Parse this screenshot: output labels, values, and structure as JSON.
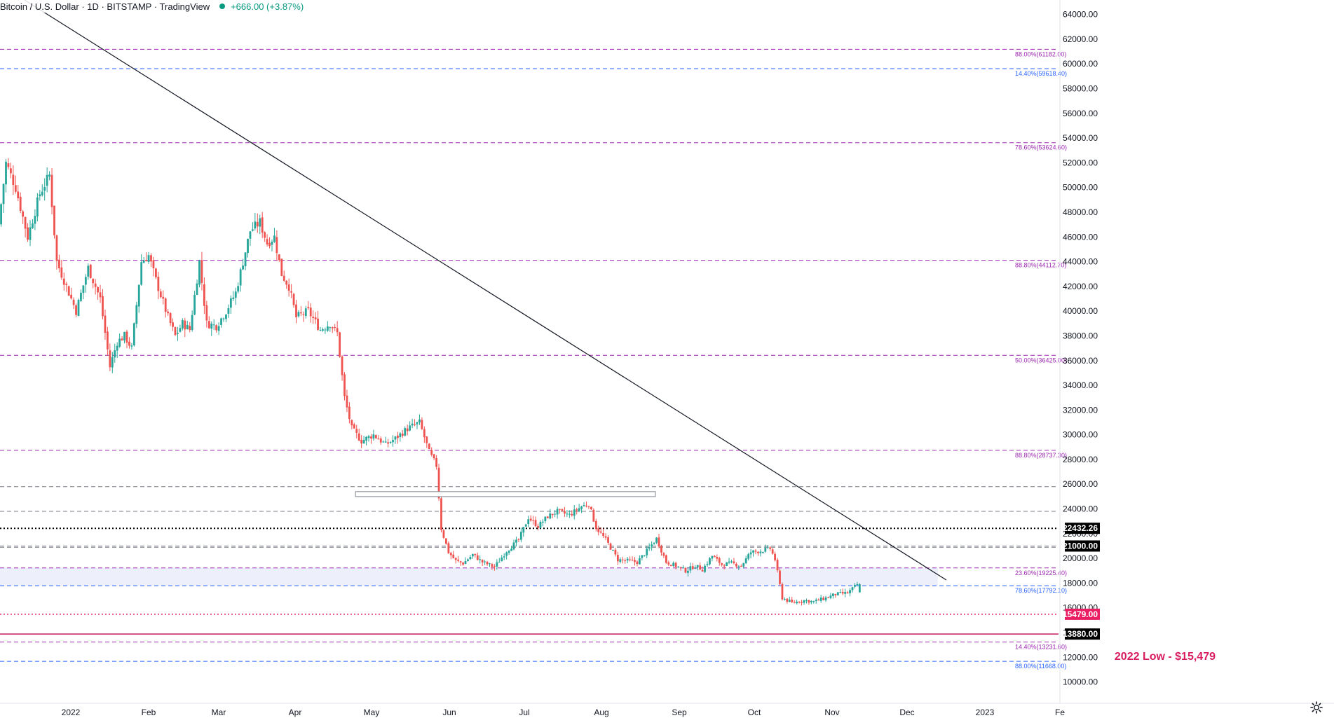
{
  "header": {
    "title": "Bitcoin / U.S. Dollar · 1D · BITSTAMP · TradingView",
    "change": "+666.00 (+3.87%)",
    "status_color": "#089981"
  },
  "colors": {
    "up": "#26a69a",
    "down": "#ef5350",
    "fib_purple": "#9c27b0",
    "fib_blue": "#2962ff",
    "grey_line": "#787b86",
    "crimson": "#c2185b"
  },
  "chart_data": {
    "type": "candlestick",
    "x_labels": [
      "2022",
      "Feb",
      "Mar",
      "Apr",
      "May",
      "Jun",
      "Jul",
      "Aug",
      "Sep",
      "Oct",
      "Nov",
      "Dec",
      "2023",
      "Fe"
    ],
    "y_ticks": [
      10000,
      12000,
      14000,
      16000,
      18000,
      20000,
      22000,
      24000,
      26000,
      28000,
      30000,
      32000,
      34000,
      36000,
      38000,
      40000,
      42000,
      44000,
      46000,
      48000,
      50000,
      52000,
      54000,
      56000,
      58000,
      60000,
      62000,
      64000
    ],
    "y_tick_labels": [
      "10000.00",
      "12000.00",
      "14000.00",
      "16000.00",
      "18000.00",
      "20000.00",
      "22000.00",
      "24000.00",
      "26000.00",
      "28000.00",
      "30000.00",
      "32000.00",
      "34000.00",
      "36000.00",
      "38000.00",
      "40000.00",
      "42000.00",
      "44000.00",
      "46000.00",
      "48000.00",
      "50000.00",
      "52000.00",
      "54000.00",
      "56000.00",
      "58000.00",
      "60000.00",
      "62000.00",
      "64000.00"
    ],
    "ylim": [
      8900,
      65000
    ],
    "fib_levels": [
      {
        "price": 61182.0,
        "label": "88.00%(61182.00)",
        "color": "purple"
      },
      {
        "price": 59618.4,
        "label": "14.40%(59618.40)",
        "color": "blue"
      },
      {
        "price": 53624.6,
        "label": "78.60%(53624.60)",
        "color": "purple"
      },
      {
        "price": 44112.7,
        "label": "88.80%(44112.70)",
        "color": "purple"
      },
      {
        "price": 36425.0,
        "label": "50.00%(36425.00)",
        "color": "purple"
      },
      {
        "price": 28737.3,
        "label": "88.80%(28737.30)",
        "color": "purple"
      },
      {
        "price": 19225.4,
        "label": "23.60%(19225.40)",
        "color": "purple"
      },
      {
        "price": 17792.1,
        "label": "78.60%(17792.10)",
        "color": "blue"
      },
      {
        "price": 13231.6,
        "label": "14.40%(13231.60)",
        "color": "purple"
      },
      {
        "price": 11668.0,
        "label": "88.00%(11668.00)",
        "color": "blue"
      }
    ],
    "grey_levels": [
      25800,
      23800,
      20900
    ],
    "price_markers": [
      {
        "price": 22432.26,
        "label": "22432.26",
        "bg": "#000000"
      },
      {
        "price": 21000.0,
        "label": "21000.00",
        "bg": "#000000"
      },
      {
        "price": 15479.0,
        "label": "15479.00",
        "bg": "#e91e63"
      },
      {
        "price": 13880.0,
        "label": "13880.00",
        "bg": "#000000"
      }
    ],
    "annotation": "2022 Low - $15,479",
    "zone": {
      "top": 19225.4,
      "bottom": 17792.1
    },
    "resistance_box": {
      "top": 25400,
      "bottom": 25000,
      "x_from_day": 147,
      "x_to_day": 271
    },
    "trendline": {
      "from": {
        "day": 10,
        "price": 65000
      },
      "to": {
        "day": 364,
        "price": 9200
      }
    },
    "candle_origin": "2022-01-01",
    "path": [
      [
        0,
        47000
      ],
      [
        3,
        52000
      ],
      [
        7,
        50000
      ],
      [
        12,
        46000
      ],
      [
        17,
        49500
      ],
      [
        21,
        51000
      ],
      [
        24,
        44000
      ],
      [
        28,
        42000
      ],
      [
        32,
        40000
      ],
      [
        37,
        43500
      ],
      [
        42,
        41000
      ],
      [
        46,
        35500
      ],
      [
        49,
        37500
      ],
      [
        52,
        38000
      ],
      [
        55,
        37000
      ],
      [
        59,
        44000
      ],
      [
        62,
        44500
      ],
      [
        65,
        42500
      ],
      [
        70,
        39500
      ],
      [
        73,
        38000
      ],
      [
        76,
        39000
      ],
      [
        79,
        38500
      ],
      [
        83,
        44000
      ],
      [
        86,
        39000
      ],
      [
        90,
        38800
      ],
      [
        94,
        40000
      ],
      [
        98,
        41500
      ],
      [
        101,
        44000
      ],
      [
        104,
        46500
      ],
      [
        108,
        47200
      ],
      [
        111,
        45500
      ],
      [
        114,
        46000
      ],
      [
        117,
        43000
      ],
      [
        120,
        42000
      ],
      [
        123,
        39500
      ],
      [
        128,
        40000
      ],
      [
        133,
        38500
      ],
      [
        137,
        39000
      ],
      [
        140,
        38200
      ],
      [
        143,
        33000
      ],
      [
        146,
        30500
      ],
      [
        150,
        29500
      ],
      [
        155,
        30000
      ],
      [
        160,
        29200
      ],
      [
        164,
        29700
      ],
      [
        169,
        30500
      ],
      [
        174,
        31000
      ],
      [
        178,
        28600
      ],
      [
        181,
        27500
      ],
      [
        183,
        22400
      ],
      [
        186,
        20500
      ],
      [
        189,
        19800
      ],
      [
        192,
        19600
      ],
      [
        196,
        20300
      ],
      [
        200,
        19700
      ],
      [
        205,
        19300
      ],
      [
        210,
        20600
      ],
      [
        215,
        21500
      ],
      [
        219,
        23300
      ],
      [
        223,
        22600
      ],
      [
        227,
        23400
      ],
      [
        231,
        23800
      ],
      [
        236,
        23500
      ],
      [
        241,
        24200
      ],
      [
        244,
        24400
      ],
      [
        247,
        22500
      ],
      [
        251,
        21500
      ],
      [
        256,
        19900
      ],
      [
        260,
        19800
      ],
      [
        264,
        19700
      ],
      [
        268,
        20600
      ],
      [
        272,
        21600
      ],
      [
        276,
        19700
      ],
      [
        280,
        19400
      ],
      [
        284,
        19000
      ],
      [
        288,
        19400
      ],
      [
        291,
        19100
      ],
      [
        295,
        20200
      ],
      [
        299,
        19500
      ],
      [
        303,
        19600
      ],
      [
        307,
        19400
      ],
      [
        311,
        20500
      ],
      [
        315,
        20600
      ],
      [
        319,
        20800
      ],
      [
        321,
        19900
      ],
      [
        324,
        16800
      ],
      [
        328,
        16400
      ],
      [
        333,
        16600
      ],
      [
        337,
        16500
      ],
      [
        342,
        16800
      ],
      [
        346,
        17100
      ],
      [
        351,
        17200
      ],
      [
        355,
        17900
      ]
    ]
  }
}
